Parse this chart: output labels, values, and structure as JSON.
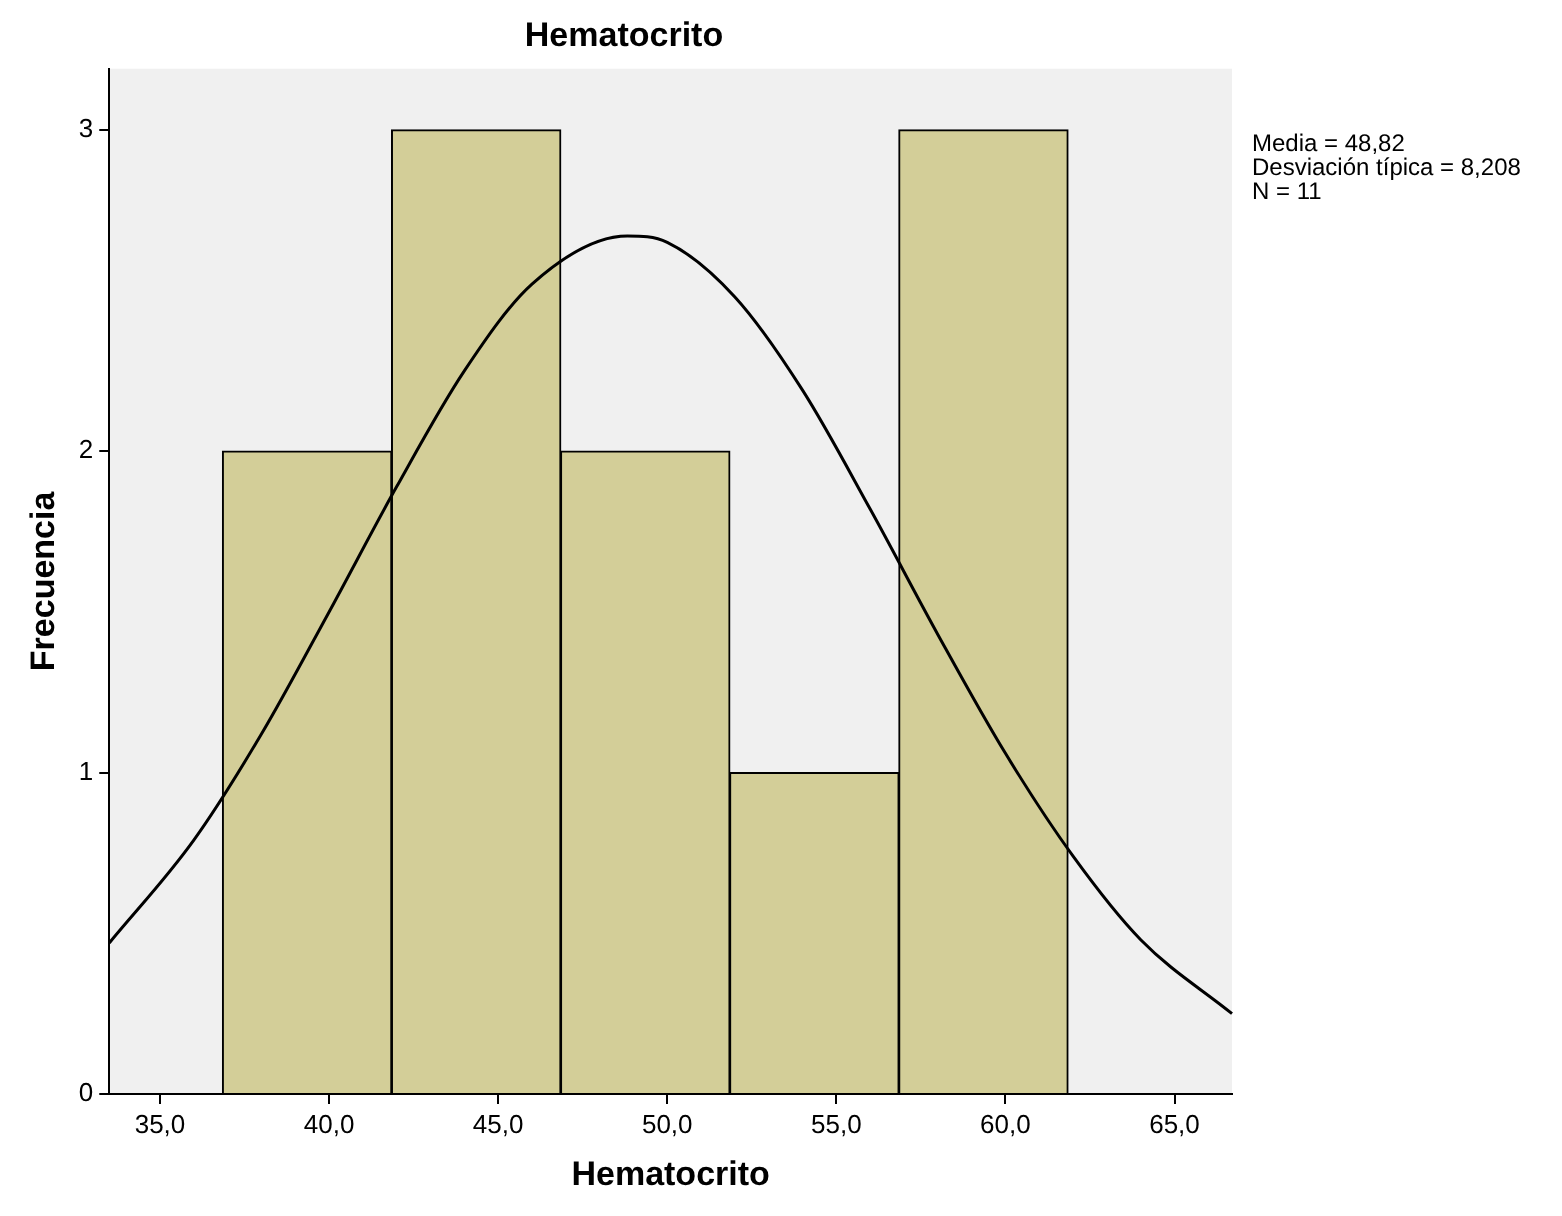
{
  "chart_data": {
    "type": "histogram",
    "title": "Hematocrito",
    "xlabel": "Hematocrito",
    "ylabel": "Frecuencia",
    "bins": [
      36.85,
      41.85,
      46.85,
      51.85,
      56.85,
      61.85
    ],
    "values": [
      2,
      3,
      2,
      1,
      3
    ],
    "color": "#d3ce98",
    "series": [
      {
        "type": "line",
        "color": "#000000",
        "x": [
          33.5,
          36,
          38,
          40,
          42,
          44,
          46,
          48.82,
          50,
          52,
          54,
          56,
          58,
          60,
          62,
          64,
          66.7
        ],
        "values": [
          0.47,
          0.79,
          1.12,
          1.5,
          1.89,
          2.25,
          2.52,
          2.67,
          2.65,
          2.48,
          2.19,
          1.82,
          1.43,
          1.06,
          0.74,
          0.48,
          0.25
        ]
      }
    ],
    "xlim": [
      33.5,
      66.7
    ],
    "xticks": [
      {
        "value": 35,
        "label": "35,0"
      },
      {
        "value": 40,
        "label": "40,0"
      },
      {
        "value": 45,
        "label": "45,0"
      },
      {
        "value": 50,
        "label": "50,0"
      },
      {
        "value": 55,
        "label": "55,0"
      },
      {
        "value": 60,
        "label": "60,0"
      },
      {
        "value": 65,
        "label": "65,0"
      }
    ],
    "ylim": [
      0,
      3.19
    ],
    "yticks": [
      0,
      1,
      2,
      3
    ],
    "grid": false,
    "legend": false,
    "annotations": [
      "Media = 48,82",
      "Desviación típica = 8,208",
      "N = 11"
    ]
  }
}
